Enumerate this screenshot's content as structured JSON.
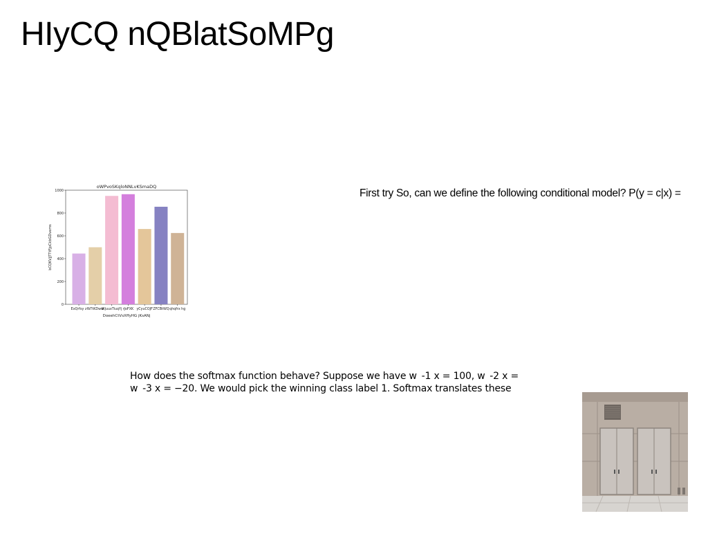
{
  "title": "HIyCQ nQBlatSoMPg",
  "right_text": "First try So, can we define the following conditional model? P(y = c|x) =",
  "body_text": {
    "line1": "How does the softmax function behave? Suppose we have w  ‐1 x = 100, w  ‐2 x =",
    "line2": "w  ‐3 x = −20. We would pick the winning class label 1. Softmax translates these"
  },
  "chart_data": {
    "type": "bar",
    "title": "oWPvoSKqloNNLvKSmaDQ",
    "xlabel": "DoeehCtVsXffyHG jKsANj",
    "ylabel": "bCQKVjJTTtFJpCkbGDvems",
    "categories": [
      "ExQrfsy z",
      "fbTtKDww",
      "WjuuxTiuqYj",
      "rJoFXK",
      "yCyuCOJF",
      "ZFCBtWQ",
      "qhqfrx hg"
    ],
    "values": [
      445,
      500,
      950,
      965,
      660,
      855,
      625
    ],
    "colors": [
      "#d8b0e6",
      "#e4cfa8",
      "#f4bcd2",
      "#d47fdd",
      "#e4c69a",
      "#8682c2",
      "#cfb396"
    ],
    "ylim": [
      0,
      1000
    ],
    "yticks": [
      0,
      200,
      400,
      600,
      800,
      1000
    ],
    "grid": false
  },
  "photo": {
    "icon": "building-doors-photo"
  }
}
